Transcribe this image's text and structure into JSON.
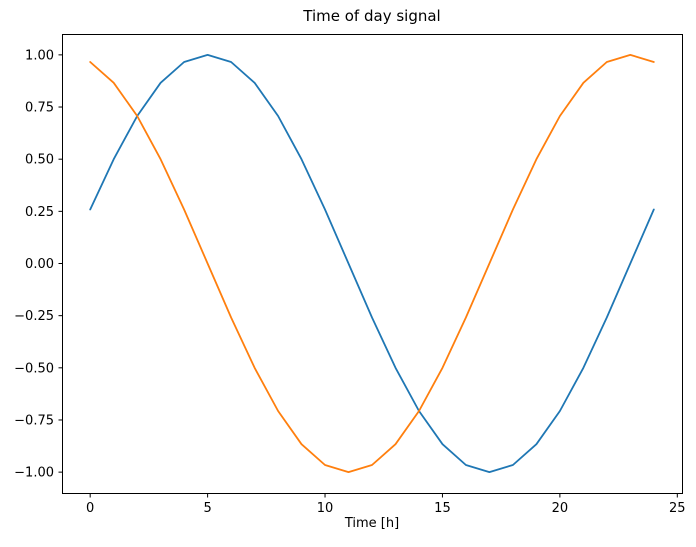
{
  "chart_data": {
    "type": "line",
    "title": "Time of day signal",
    "xlabel": "Time [h]",
    "ylabel": "",
    "x": [
      0,
      1,
      2,
      3,
      4,
      5,
      6,
      7,
      8,
      9,
      10,
      11,
      12,
      13,
      14,
      15,
      16,
      17,
      18,
      19,
      20,
      21,
      22,
      23,
      24
    ],
    "series": [
      {
        "name": "blue-line",
        "color": "#1f77b4",
        "values": [
          0.259,
          0.5,
          0.707,
          0.866,
          0.966,
          1.0,
          0.966,
          0.866,
          0.707,
          0.5,
          0.259,
          0.0,
          -0.259,
          -0.5,
          -0.707,
          -0.866,
          -0.966,
          -1.0,
          -0.966,
          -0.866,
          -0.707,
          -0.5,
          -0.259,
          0.0,
          0.259
        ]
      },
      {
        "name": "orange-line",
        "color": "#ff7f0e",
        "values": [
          0.966,
          0.866,
          0.707,
          0.5,
          0.259,
          0.0,
          -0.259,
          -0.5,
          -0.707,
          -0.866,
          -0.966,
          -1.0,
          -0.966,
          -0.866,
          -0.707,
          -0.5,
          -0.259,
          0.0,
          0.259,
          0.5,
          0.707,
          0.866,
          0.966,
          1.0,
          0.966
        ]
      }
    ],
    "xlim": [
      -1.2,
      25.2
    ],
    "ylim": [
      -1.1,
      1.1
    ],
    "xticks": [
      0,
      5,
      10,
      15,
      20,
      25
    ],
    "xtick_labels": [
      "0",
      "5",
      "10",
      "15",
      "20",
      "25"
    ],
    "yticks": [
      1.0,
      0.75,
      0.5,
      0.25,
      0.0,
      -0.25,
      -0.5,
      -0.75,
      -1.0
    ],
    "ytick_labels": [
      "1.00",
      "0.75",
      "0.50",
      "0.25",
      "0.00",
      "−0.25",
      "−0.50",
      "−0.75",
      "−1.00"
    ],
    "grid": false,
    "legend": "none",
    "background": "#ffffff",
    "spine_color": "#000000",
    "tick_color": "#000000"
  }
}
